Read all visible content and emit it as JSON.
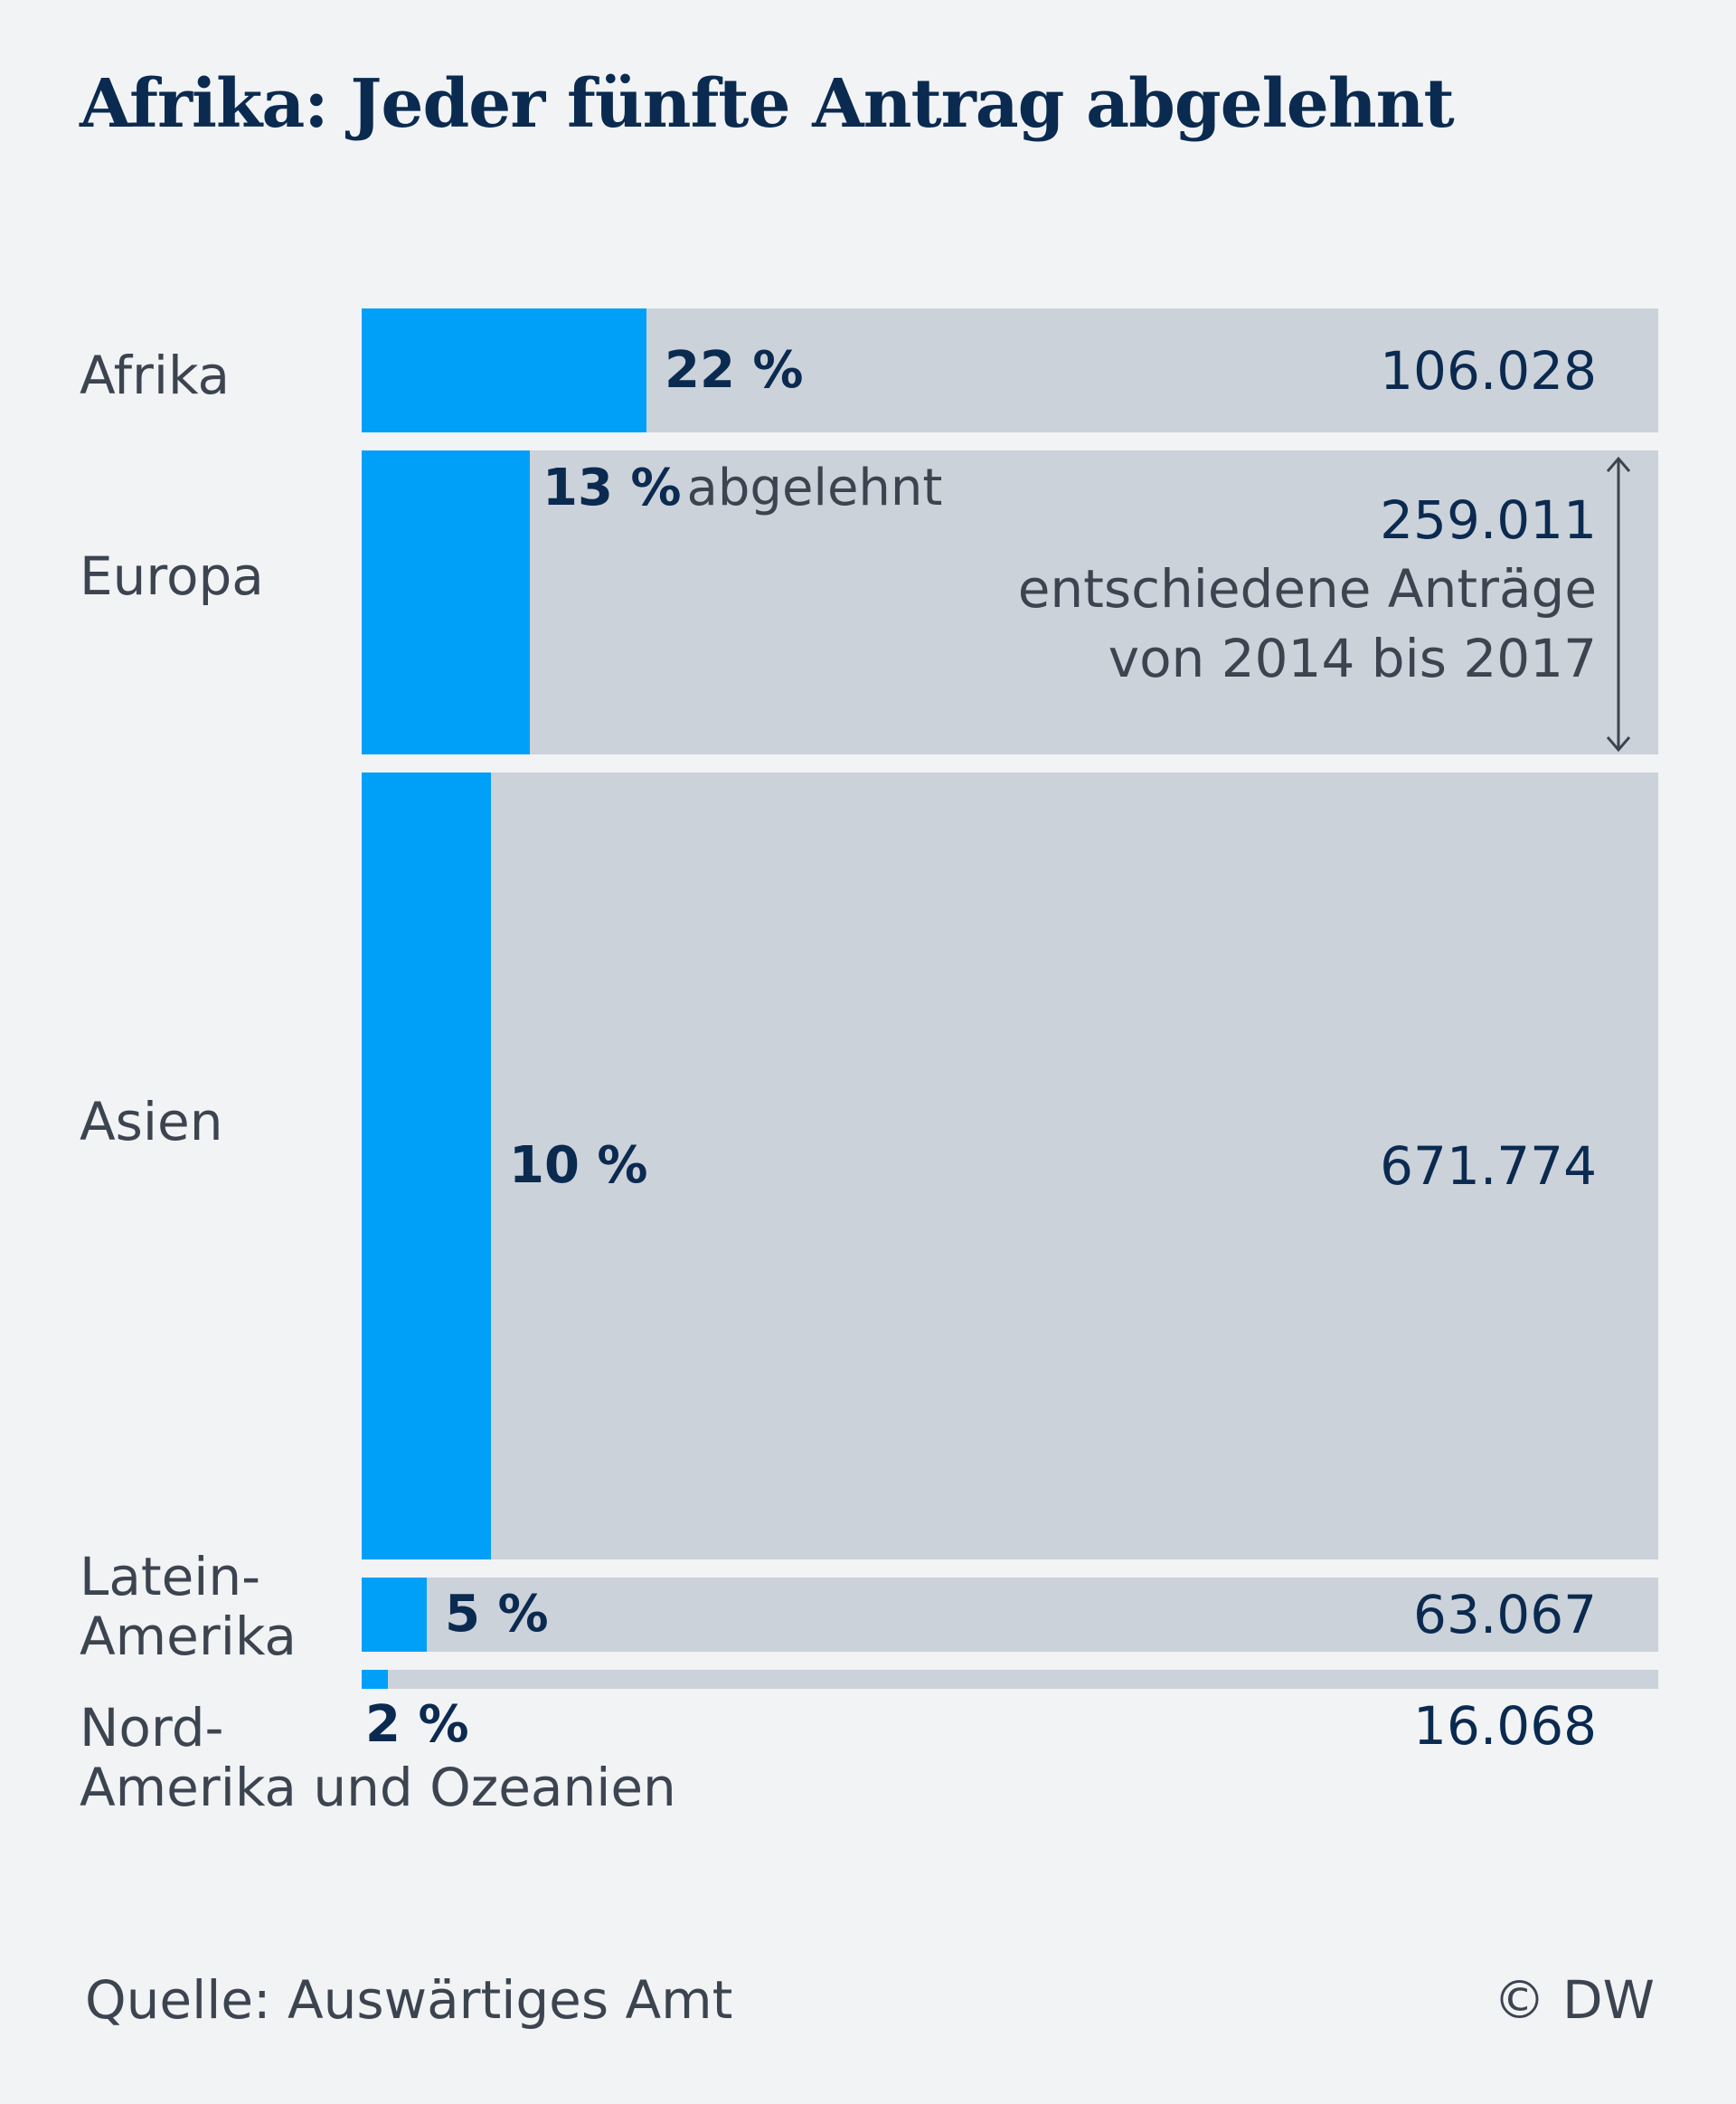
{
  "title": "Afrika: Jeder fünfte Antrag abgelehnt",
  "colors": {
    "background": "#f1f3f5",
    "bar_track": "#cbd2da",
    "bar_fill": "#00a0f8",
    "title_text": "#0b2a50",
    "label_text": "#3c4450"
  },
  "chart_data": {
    "type": "bar",
    "orientation": "horizontal",
    "categories": [
      "Afrika",
      "Europa",
      "Asien",
      "Latein-Amerika",
      "Nord-Amerika und Ozeanien"
    ],
    "category_labels": [
      [
        "Afrika"
      ],
      [
        "Europa"
      ],
      [
        "Asien"
      ],
      [
        "Latein-",
        "Amerika"
      ],
      [
        "Nord-",
        "Amerika und Ozeanien"
      ]
    ],
    "rejected_percent": [
      22,
      13,
      10,
      5,
      2
    ],
    "percent_labels": [
      "22 %",
      "13 %",
      "10 %",
      "5 %",
      "2 %"
    ],
    "decided_applications": [
      106028,
      259011,
      671774,
      63067,
      16068
    ],
    "decided_labels": [
      "106.028",
      "259.011",
      "671.774",
      "63.067",
      "16.068"
    ],
    "annotation": {
      "percent_suffix": "abgelehnt",
      "lines": [
        "entschiedene Anträge",
        "von 2014 bis 2017"
      ]
    },
    "encoding": "bar height proportional to decided applications; blue fill width = rejected share"
  },
  "footer": {
    "source": "Quelle: Auswärtiges Amt",
    "credit": "© DW"
  }
}
